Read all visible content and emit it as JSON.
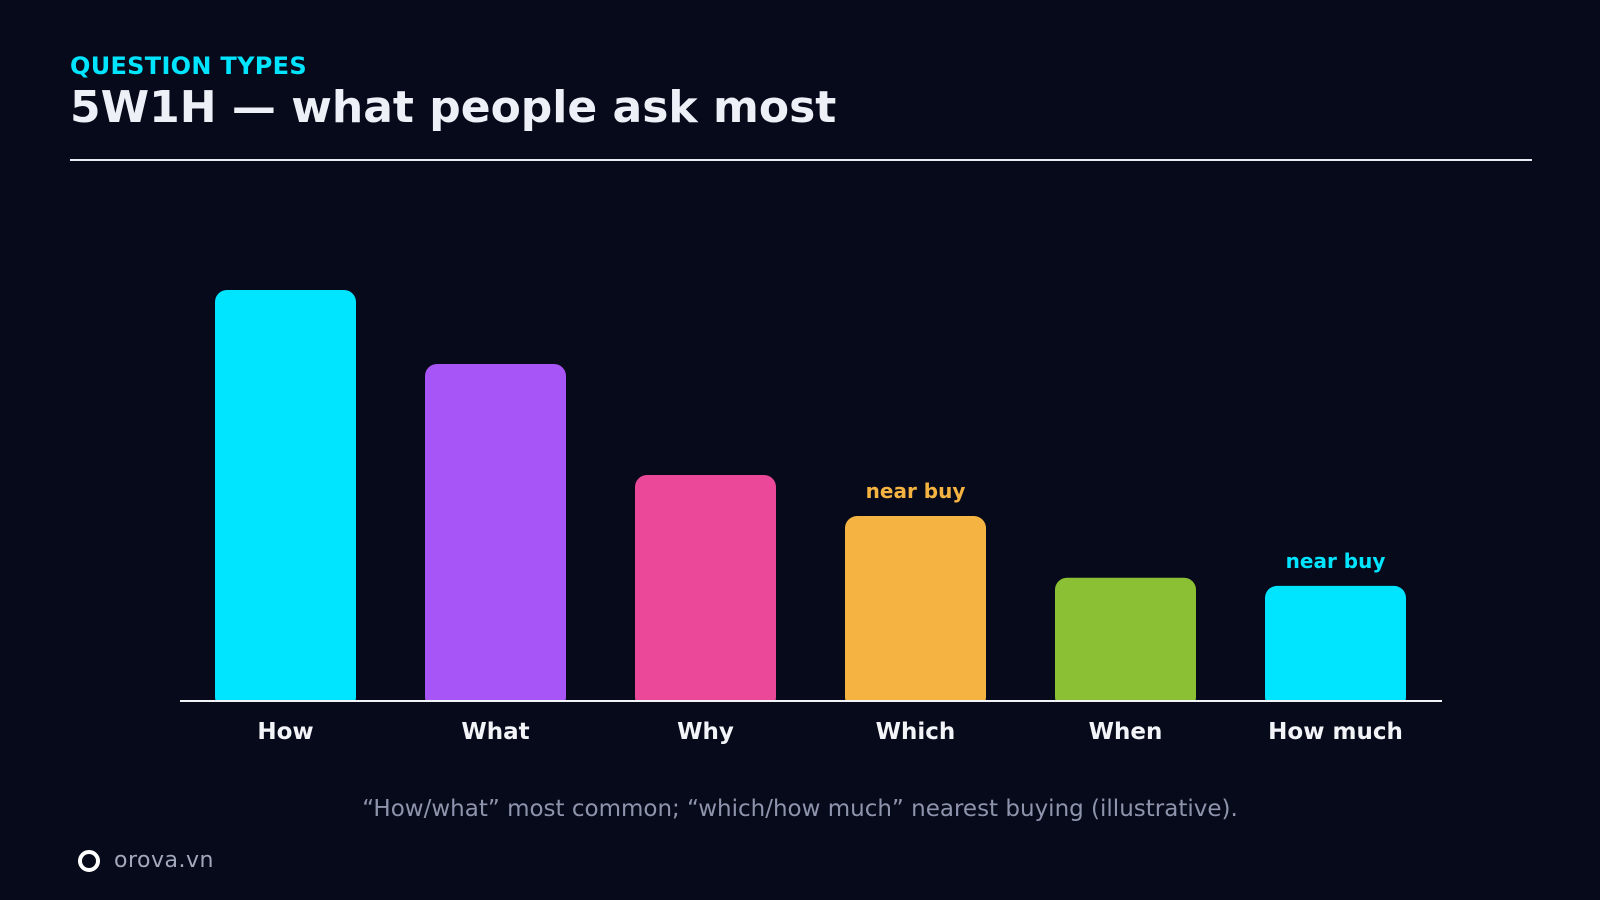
{
  "header": {
    "eyebrow": "QUESTION TYPES",
    "title": "5W1H — what people ask most"
  },
  "chart_data": {
    "type": "bar",
    "title": "5W1H — what people ask most",
    "xlabel": "",
    "ylabel": "",
    "ylim": [
      0,
      100
    ],
    "grid": false,
    "legend": "none",
    "categories": [
      "How",
      "What",
      "Why",
      "Which",
      "When",
      "How much"
    ],
    "values": [
      100,
      82,
      55,
      45,
      30,
      28
    ],
    "colors": [
      "#00e5ff",
      "#a855f7",
      "#ec4899",
      "#f5b342",
      "#8bc034",
      "#00e5ff"
    ],
    "annotations": [
      {
        "category": "Which",
        "text": "near buy",
        "color": "#f5b342"
      },
      {
        "category": "How much",
        "text": "near buy",
        "color": "#00e5ff"
      }
    ]
  },
  "footer": {
    "caption": "“How/what” most common; “which/how much” nearest buying (illustrative).",
    "brand": "orova.vn"
  }
}
